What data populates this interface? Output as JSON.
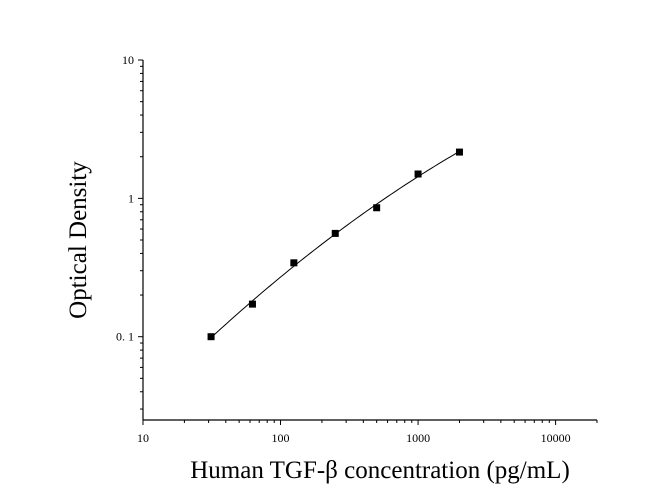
{
  "chart_data": {
    "type": "scatter",
    "xlabel": "Human TGF-β concentration (pg/mL)",
    "ylabel": "Optical Density",
    "x_scale": "log",
    "y_scale": "log",
    "xlim": [
      10,
      20000
    ],
    "ylim": [
      0.025,
      10
    ],
    "x_ticks": [
      {
        "value": 10,
        "label": "10"
      },
      {
        "value": 100,
        "label": "100"
      },
      {
        "value": 1000,
        "label": "1000"
      },
      {
        "value": 10000,
        "label": "10000"
      }
    ],
    "y_ticks": [
      {
        "value": 0.1,
        "label": "0. 1"
      },
      {
        "value": 1,
        "label": "1"
      },
      {
        "value": 10,
        "label": "10"
      }
    ],
    "grid": false,
    "series": [
      {
        "points": [
          {
            "x": 31.25,
            "y": 0.1
          },
          {
            "x": 62.5,
            "y": 0.172
          },
          {
            "x": 125,
            "y": 0.342
          },
          {
            "x": 250,
            "y": 0.558
          },
          {
            "x": 500,
            "y": 0.855
          },
          {
            "x": 1000,
            "y": 1.5
          },
          {
            "x": 2000,
            "y": 2.16
          }
        ],
        "marker": "square",
        "color": "#000000"
      }
    ],
    "fit_curve": {
      "x_range": [
        31.25,
        2000
      ],
      "color": "#000000"
    }
  }
}
